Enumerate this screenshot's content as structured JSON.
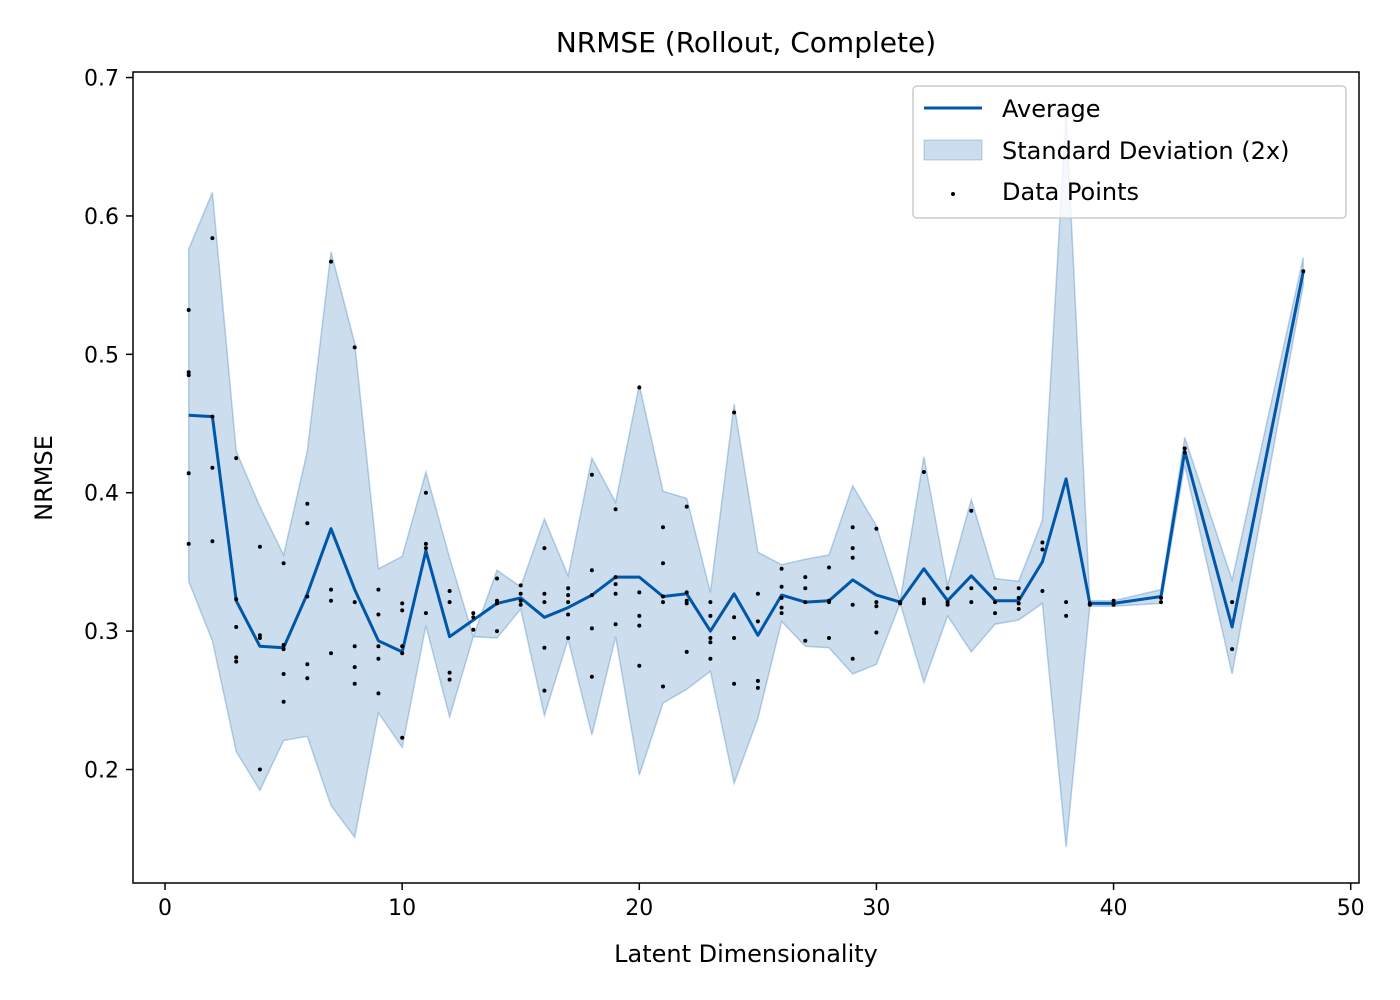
{
  "chart_data": {
    "type": "line",
    "title": "NRMSE (Rollout, Complete)",
    "xlabel": "Latent Dimensionality",
    "ylabel": "NRMSE",
    "xlim": [
      -1.35,
      50.35
    ],
    "ylim": [
      0.118,
      0.704
    ],
    "xticks": [
      0,
      10,
      20,
      30,
      40,
      50
    ],
    "yticks": [
      0.2,
      0.3,
      0.4,
      0.5,
      0.6,
      0.7
    ],
    "grid": false,
    "legend_position": "upper right",
    "colors": {
      "line": "#0057a8",
      "band": "#0057a8",
      "points": "#000000"
    },
    "legend": [
      "Average",
      "Standard Deviation (2x)",
      "Data Points"
    ],
    "x": [
      1,
      2,
      3,
      4,
      5,
      6,
      7,
      8,
      9,
      10,
      11,
      12,
      13,
      14,
      15,
      16,
      17,
      18,
      19,
      20,
      21,
      22,
      23,
      24,
      25,
      26,
      27,
      28,
      29,
      30,
      31,
      32,
      33,
      34,
      35,
      36,
      37,
      38,
      39,
      40,
      42,
      43,
      45,
      48
    ],
    "series": [
      {
        "name": "Average",
        "values": [
          0.456,
          0.455,
          0.322,
          0.289,
          0.288,
          0.327,
          0.374,
          0.33,
          0.293,
          0.285,
          0.358,
          0.296,
          0.308,
          0.32,
          0.324,
          0.31,
          0.317,
          0.326,
          0.339,
          0.339,
          0.325,
          0.327,
          0.3,
          0.327,
          0.297,
          0.326,
          0.321,
          0.322,
          0.337,
          0.326,
          0.321,
          0.345,
          0.322,
          0.34,
          0.322,
          0.322,
          0.35,
          0.41,
          0.32,
          0.32,
          0.325,
          0.43,
          0.303,
          0.56
        ]
      },
      {
        "name": "Standard Deviation (2x)",
        "lower": [
          0.336,
          0.293,
          0.213,
          0.185,
          0.221,
          0.224,
          0.174,
          0.151,
          0.241,
          0.216,
          0.304,
          0.238,
          0.296,
          0.295,
          0.316,
          0.239,
          0.294,
          0.225,
          0.296,
          0.196,
          0.248,
          0.258,
          0.271,
          0.19,
          0.237,
          0.307,
          0.289,
          0.288,
          0.269,
          0.276,
          0.32,
          0.263,
          0.311,
          0.285,
          0.305,
          0.308,
          0.32,
          0.144,
          0.318,
          0.318,
          0.32,
          0.42,
          0.269,
          0.55
        ],
        "upper": [
          0.576,
          0.617,
          0.43,
          0.39,
          0.355,
          0.43,
          0.574,
          0.508,
          0.345,
          0.354,
          0.415,
          0.353,
          0.296,
          0.344,
          0.332,
          0.381,
          0.34,
          0.425,
          0.393,
          0.478,
          0.401,
          0.396,
          0.328,
          0.464,
          0.357,
          0.348,
          0.352,
          0.355,
          0.405,
          0.376,
          0.322,
          0.426,
          0.333,
          0.395,
          0.338,
          0.336,
          0.38,
          0.675,
          0.322,
          0.322,
          0.33,
          0.44,
          0.337,
          0.57
        ]
      }
    ],
    "points": [
      [
        1,
        0.532
      ],
      [
        1,
        0.487
      ],
      [
        1,
        0.485
      ],
      [
        1,
        0.414
      ],
      [
        1,
        0.363
      ],
      [
        2,
        0.584
      ],
      [
        2,
        0.455
      ],
      [
        2,
        0.418
      ],
      [
        2,
        0.365
      ],
      [
        3,
        0.425
      ],
      [
        3,
        0.323
      ],
      [
        3,
        0.303
      ],
      [
        3,
        0.281
      ],
      [
        3,
        0.278
      ],
      [
        4,
        0.361
      ],
      [
        4,
        0.297
      ],
      [
        4,
        0.295
      ],
      [
        4,
        0.2
      ],
      [
        5,
        0.349
      ],
      [
        5,
        0.29
      ],
      [
        5,
        0.287
      ],
      [
        5,
        0.269
      ],
      [
        5,
        0.249
      ],
      [
        6,
        0.392
      ],
      [
        6,
        0.378
      ],
      [
        6,
        0.325
      ],
      [
        6,
        0.276
      ],
      [
        6,
        0.266
      ],
      [
        7,
        0.567
      ],
      [
        7,
        0.33
      ],
      [
        7,
        0.322
      ],
      [
        7,
        0.284
      ],
      [
        8,
        0.505
      ],
      [
        8,
        0.321
      ],
      [
        8,
        0.289
      ],
      [
        8,
        0.274
      ],
      [
        8,
        0.262
      ],
      [
        9,
        0.33
      ],
      [
        9,
        0.312
      ],
      [
        9,
        0.289
      ],
      [
        9,
        0.28
      ],
      [
        9,
        0.255
      ],
      [
        10,
        0.32
      ],
      [
        10,
        0.315
      ],
      [
        10,
        0.289
      ],
      [
        10,
        0.284
      ],
      [
        10,
        0.223
      ],
      [
        11,
        0.4
      ],
      [
        11,
        0.363
      ],
      [
        11,
        0.36
      ],
      [
        11,
        0.313
      ],
      [
        12,
        0.329
      ],
      [
        12,
        0.321
      ],
      [
        12,
        0.27
      ],
      [
        12,
        0.265
      ],
      [
        13,
        0.313
      ],
      [
        13,
        0.31
      ],
      [
        13,
        0.301
      ],
      [
        14,
        0.338
      ],
      [
        14,
        0.322
      ],
      [
        14,
        0.32
      ],
      [
        14,
        0.3
      ],
      [
        15,
        0.333
      ],
      [
        15,
        0.327
      ],
      [
        15,
        0.322
      ],
      [
        15,
        0.319
      ],
      [
        16,
        0.36
      ],
      [
        16,
        0.327
      ],
      [
        16,
        0.321
      ],
      [
        16,
        0.288
      ],
      [
        16,
        0.257
      ],
      [
        17,
        0.331
      ],
      [
        17,
        0.326
      ],
      [
        17,
        0.321
      ],
      [
        17,
        0.312
      ],
      [
        17,
        0.295
      ],
      [
        18,
        0.413
      ],
      [
        18,
        0.344
      ],
      [
        18,
        0.326
      ],
      [
        18,
        0.302
      ],
      [
        18,
        0.267
      ],
      [
        19,
        0.388
      ],
      [
        19,
        0.339
      ],
      [
        19,
        0.334
      ],
      [
        19,
        0.327
      ],
      [
        19,
        0.305
      ],
      [
        20,
        0.476
      ],
      [
        20,
        0.328
      ],
      [
        20,
        0.311
      ],
      [
        20,
        0.304
      ],
      [
        20,
        0.275
      ],
      [
        21,
        0.375
      ],
      [
        21,
        0.349
      ],
      [
        21,
        0.325
      ],
      [
        21,
        0.321
      ],
      [
        21,
        0.26
      ],
      [
        22,
        0.39
      ],
      [
        22,
        0.328
      ],
      [
        22,
        0.322
      ],
      [
        22,
        0.32
      ],
      [
        22,
        0.285
      ],
      [
        23,
        0.321
      ],
      [
        23,
        0.311
      ],
      [
        23,
        0.295
      ],
      [
        23,
        0.292
      ],
      [
        23,
        0.28
      ],
      [
        24,
        0.458
      ],
      [
        24,
        0.31
      ],
      [
        24,
        0.295
      ],
      [
        24,
        0.262
      ],
      [
        25,
        0.327
      ],
      [
        25,
        0.307
      ],
      [
        25,
        0.264
      ],
      [
        25,
        0.259
      ],
      [
        26,
        0.345
      ],
      [
        26,
        0.332
      ],
      [
        26,
        0.324
      ],
      [
        26,
        0.317
      ],
      [
        26,
        0.313
      ],
      [
        27,
        0.339
      ],
      [
        27,
        0.331
      ],
      [
        27,
        0.321
      ],
      [
        27,
        0.293
      ],
      [
        28,
        0.346
      ],
      [
        28,
        0.322
      ],
      [
        28,
        0.321
      ],
      [
        28,
        0.295
      ],
      [
        29,
        0.375
      ],
      [
        29,
        0.36
      ],
      [
        29,
        0.353
      ],
      [
        29,
        0.319
      ],
      [
        29,
        0.28
      ],
      [
        30,
        0.374
      ],
      [
        30,
        0.321
      ],
      [
        30,
        0.318
      ],
      [
        30,
        0.299
      ],
      [
        31,
        0.321
      ],
      [
        31,
        0.32
      ],
      [
        32,
        0.415
      ],
      [
        32,
        0.323
      ],
      [
        32,
        0.321
      ],
      [
        32,
        0.32
      ],
      [
        33,
        0.331
      ],
      [
        33,
        0.321
      ],
      [
        33,
        0.319
      ],
      [
        34,
        0.387
      ],
      [
        34,
        0.331
      ],
      [
        34,
        0.321
      ],
      [
        35,
        0.331
      ],
      [
        35,
        0.321
      ],
      [
        35,
        0.313
      ],
      [
        36,
        0.331
      ],
      [
        36,
        0.324
      ],
      [
        36,
        0.32
      ],
      [
        36,
        0.316
      ],
      [
        37,
        0.364
      ],
      [
        37,
        0.359
      ],
      [
        37,
        0.329
      ],
      [
        38,
        0.321
      ],
      [
        38,
        0.311
      ],
      [
        39,
        0.32
      ],
      [
        39,
        0.319
      ],
      [
        40,
        0.322
      ],
      [
        40,
        0.319
      ],
      [
        42,
        0.324
      ],
      [
        42,
        0.321
      ],
      [
        43,
        0.432
      ],
      [
        43,
        0.429
      ],
      [
        45,
        0.321
      ],
      [
        45,
        0.287
      ],
      [
        48,
        0.56
      ]
    ]
  }
}
